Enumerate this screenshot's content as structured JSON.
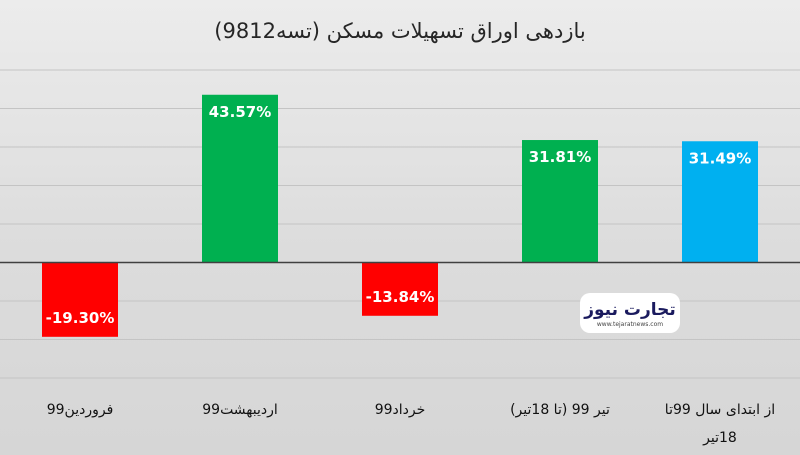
{
  "chart_data": {
    "type": "bar",
    "title": "بازدهی اوراق تسهیلات مسکن (تسه9812)",
    "categories": [
      "فروردین99",
      "اردیبهشت99",
      "خرداد99",
      "تیر 99 (تا 18تیر)",
      "از ابتدای سال 99تا 18تیر"
    ],
    "values": [
      -19.3,
      43.57,
      -13.84,
      31.81,
      31.49
    ],
    "data_labels": [
      "-19.30%",
      "43.57%",
      "-13.84%",
      "31.81%",
      "31.49%"
    ],
    "colors": [
      "#ff0000",
      "#00b050",
      "#ff0000",
      "#00b050",
      "#00b0f0"
    ],
    "ylim": [
      -30,
      50
    ],
    "grid": true,
    "legend": "none"
  },
  "watermark": {
    "name": "تجارت نیوز",
    "url": "www.tejaratnews.com",
    "colors": {
      "primary": "#1a1a5e",
      "accent": "#e30613"
    }
  }
}
